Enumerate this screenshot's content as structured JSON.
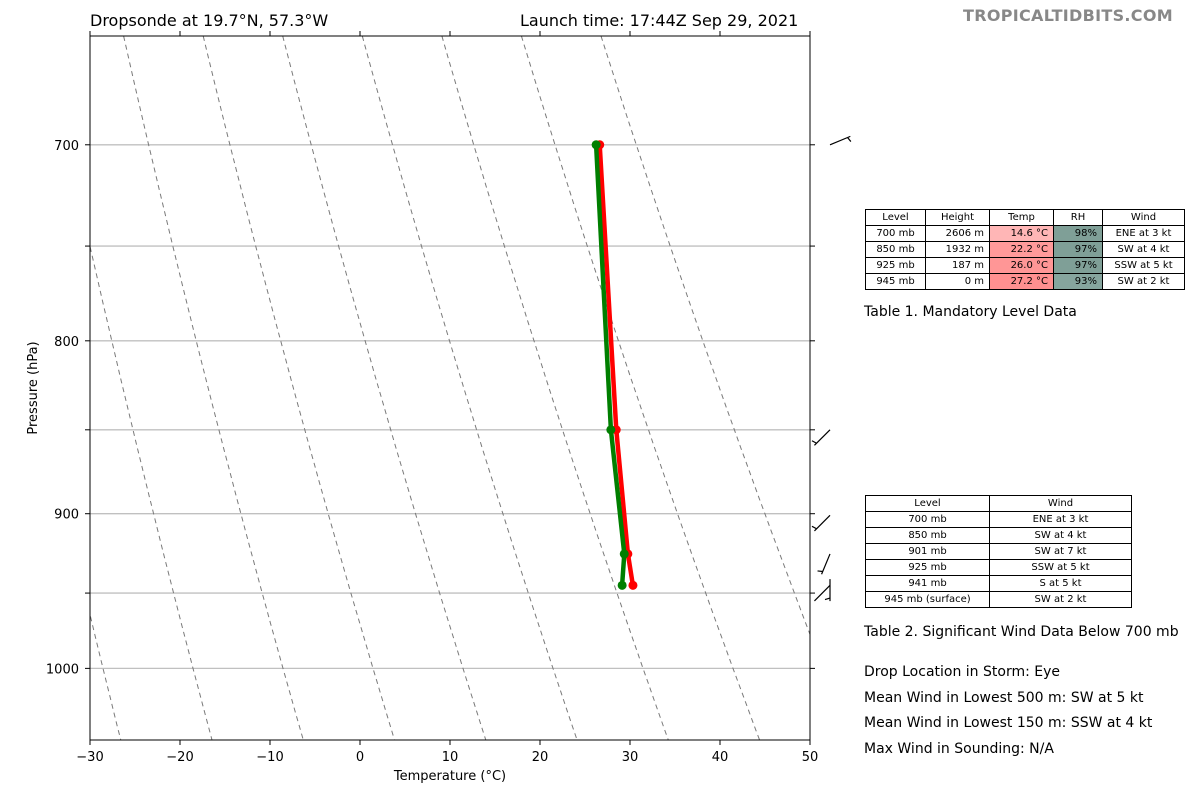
{
  "header": {
    "title_left": "Dropsonde at 19.7°N, 57.3°W",
    "title_right": "Launch time: 17:44Z Sep 29, 2021",
    "watermark": "TROPICALTIDBITS.COM"
  },
  "chart_data": {
    "type": "line",
    "subtype": "skew-t",
    "xlabel": "Temperature (°C)",
    "ylabel": "Pressure (hPa)",
    "xlim": [
      -30,
      50
    ],
    "ylim": [
      1050,
      650
    ],
    "yscale": "log",
    "x_ticks": [
      -30,
      -20,
      -10,
      0,
      10,
      20,
      30,
      40,
      50
    ],
    "x_tick_labels": [
      "−30",
      "−20",
      "−10",
      "0",
      "10",
      "20",
      "30",
      "40",
      "50"
    ],
    "y_ticks": [
      700,
      800,
      900,
      1000
    ],
    "y_tick_labels": [
      "700",
      "800",
      "900",
      "1000"
    ],
    "grid_pressures": [
      700,
      750,
      800,
      850,
      900,
      950,
      1000
    ],
    "dry_adiabat_temps": [
      -30,
      -20,
      -10,
      0,
      10,
      20,
      30,
      40,
      50
    ],
    "series": [
      {
        "color": "#ff0000",
        "points": [
          {
            "p": 700,
            "t": 14.6
          },
          {
            "p": 850,
            "t": 22.2
          },
          {
            "p": 925,
            "t": 26.0
          },
          {
            "p": 945,
            "t": 27.2
          }
        ]
      },
      {
        "color": "#007f00",
        "points": [
          {
            "p": 700,
            "t": 14.2
          },
          {
            "p": 850,
            "t": 21.6
          },
          {
            "p": 925,
            "t": 25.6
          },
          {
            "p": 945,
            "t": 26.0
          }
        ]
      }
    ],
    "wind_barbs": [
      {
        "p": 700,
        "dir": 67.5,
        "kt": 3
      },
      {
        "p": 850,
        "dir": 225,
        "kt": 4
      },
      {
        "p": 901,
        "dir": 225,
        "kt": 7
      },
      {
        "p": 925,
        "dir": 202.5,
        "kt": 5
      },
      {
        "p": 941,
        "dir": 180,
        "kt": 5
      },
      {
        "p": 945,
        "dir": 225,
        "kt": 2
      }
    ]
  },
  "table1": {
    "caption": "Table 1. Mandatory Level Data",
    "headers": [
      "Level",
      "Height",
      "Temp",
      "RH",
      "Wind"
    ],
    "rows": [
      {
        "level": "700 mb",
        "height": "2606 m",
        "temp": "14.6 °C",
        "rh": "98%",
        "wind": "ENE at 3 kt",
        "temp_color": "#ffb6b6",
        "rh_color": "#7f9f97"
      },
      {
        "level": "850 mb",
        "height": "1932 m",
        "temp": "22.2 °C",
        "rh": "97%",
        "wind": "SW at 4 kt",
        "temp_color": "#ff9a9a",
        "rh_color": "#7f9f97"
      },
      {
        "level": "925 mb",
        "height": "187 m",
        "temp": "26.0 °C",
        "rh": "97%",
        "wind": "SSW at 5 kt",
        "temp_color": "#ff9696",
        "rh_color": "#7f9f97"
      },
      {
        "level": "945 mb",
        "height": "0 m",
        "temp": "27.2 °C",
        "rh": "93%",
        "wind": "SW at 2 kt",
        "temp_color": "#ff9090",
        "rh_color": "#86a59e"
      }
    ]
  },
  "table2": {
    "caption": "Table 2. Significant Wind Data Below 700 mb",
    "headers": [
      "Level",
      "Wind"
    ],
    "rows": [
      {
        "level": "700 mb",
        "wind": "ENE at 3 kt"
      },
      {
        "level": "850 mb",
        "wind": "SW at 4 kt"
      },
      {
        "level": "901 mb",
        "wind": "SW at 7 kt"
      },
      {
        "level": "925 mb",
        "wind": "SSW at 5 kt"
      },
      {
        "level": "941 mb",
        "wind": "S at 5 kt"
      },
      {
        "level": "945 mb (surface)",
        "wind": "SW at 2 kt"
      }
    ]
  },
  "info": [
    "Drop Location in Storm: Eye",
    "Mean Wind in Lowest 500 m:  SW at 5 kt",
    "Mean Wind in Lowest 150 m:  SSW at 4 kt",
    "Max Wind in Sounding:  N/A"
  ]
}
